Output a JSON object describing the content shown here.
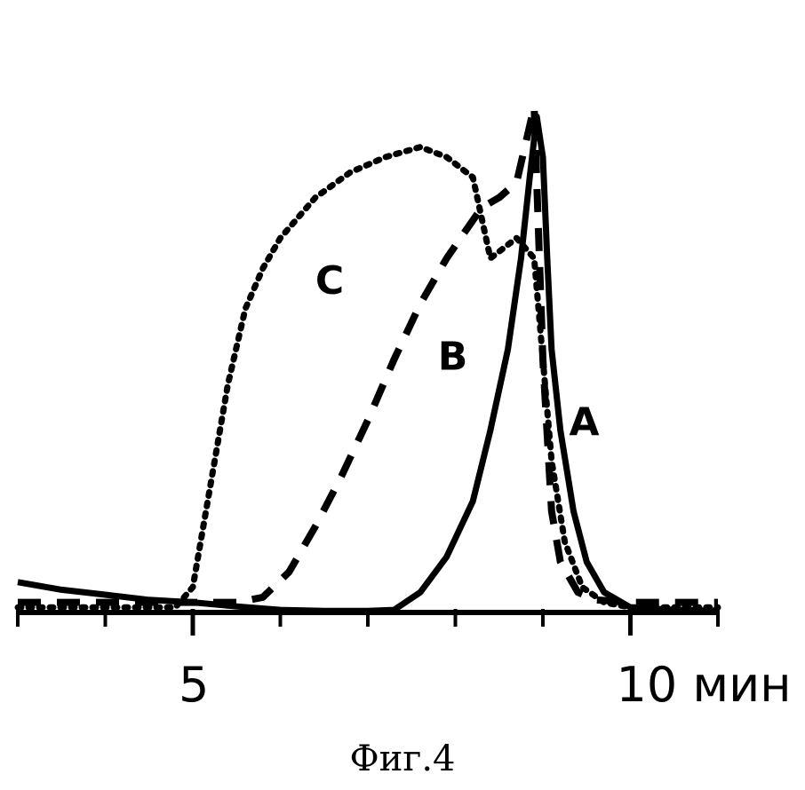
{
  "caption": "Фиг.4",
  "chart_data": {
    "type": "line",
    "xlabel": "",
    "ylabel": "",
    "xlim": [
      3,
      11
    ],
    "ylim": [
      0,
      1
    ],
    "x_ticks": [
      3,
      4,
      5,
      6,
      7,
      8,
      9,
      10,
      11
    ],
    "x_tick_labels": [
      {
        "x": 5,
        "label": "5"
      },
      {
        "x": 10,
        "label": "10 мин"
      }
    ],
    "grid": false,
    "legend": "none",
    "series": [
      {
        "name": "A",
        "style": "solid",
        "label_at": [
          9.3,
          0.35
        ],
        "points": [
          [
            3.0,
            0.06
          ],
          [
            3.5,
            0.045
          ],
          [
            4.0,
            0.035
          ],
          [
            4.5,
            0.025
          ],
          [
            5.0,
            0.02
          ],
          [
            5.5,
            0.012
          ],
          [
            6.0,
            0.005
          ],
          [
            6.5,
            0.003
          ],
          [
            7.0,
            0.003
          ],
          [
            7.3,
            0.005
          ],
          [
            7.6,
            0.04
          ],
          [
            7.9,
            0.11
          ],
          [
            8.2,
            0.22
          ],
          [
            8.4,
            0.36
          ],
          [
            8.6,
            0.52
          ],
          [
            8.75,
            0.7
          ],
          [
            8.85,
            0.86
          ],
          [
            8.93,
            0.98
          ],
          [
            9.0,
            0.9
          ],
          [
            9.05,
            0.7
          ],
          [
            9.1,
            0.52
          ],
          [
            9.2,
            0.36
          ],
          [
            9.35,
            0.2
          ],
          [
            9.5,
            0.1
          ],
          [
            9.7,
            0.04
          ],
          [
            10.0,
            0.01
          ],
          [
            10.5,
            0.005
          ],
          [
            11.0,
            0.003
          ]
        ]
      },
      {
        "name": "B",
        "style": "dashed",
        "label_at": [
          7.8,
          0.48
        ],
        "points": [
          [
            3.0,
            0.02
          ],
          [
            4.0,
            0.02
          ],
          [
            5.0,
            0.02
          ],
          [
            5.5,
            0.02
          ],
          [
            5.8,
            0.03
          ],
          [
            6.1,
            0.08
          ],
          [
            6.4,
            0.17
          ],
          [
            6.7,
            0.27
          ],
          [
            7.0,
            0.38
          ],
          [
            7.3,
            0.5
          ],
          [
            7.6,
            0.61
          ],
          [
            7.9,
            0.7
          ],
          [
            8.1,
            0.75
          ],
          [
            8.3,
            0.8
          ],
          [
            8.5,
            0.82
          ],
          [
            8.7,
            0.85
          ],
          [
            8.9,
            1.0
          ],
          [
            9.0,
            0.5
          ],
          [
            9.1,
            0.2
          ],
          [
            9.2,
            0.1
          ],
          [
            9.4,
            0.04
          ],
          [
            9.6,
            0.025
          ],
          [
            10.0,
            0.02
          ],
          [
            10.5,
            0.02
          ],
          [
            11.0,
            0.02
          ]
        ]
      },
      {
        "name": "C",
        "style": "dotted",
        "label_at": [
          6.4,
          0.63
        ],
        "points": [
          [
            3.0,
            0.01
          ],
          [
            4.0,
            0.01
          ],
          [
            4.8,
            0.01
          ],
          [
            5.0,
            0.05
          ],
          [
            5.2,
            0.25
          ],
          [
            5.4,
            0.45
          ],
          [
            5.6,
            0.6
          ],
          [
            5.8,
            0.68
          ],
          [
            6.0,
            0.74
          ],
          [
            6.4,
            0.82
          ],
          [
            6.8,
            0.87
          ],
          [
            7.2,
            0.9
          ],
          [
            7.6,
            0.92
          ],
          [
            7.9,
            0.9
          ],
          [
            8.2,
            0.86
          ],
          [
            8.4,
            0.7
          ],
          [
            8.55,
            0.72
          ],
          [
            8.7,
            0.74
          ],
          [
            8.9,
            0.7
          ],
          [
            9.0,
            0.5
          ],
          [
            9.1,
            0.3
          ],
          [
            9.25,
            0.14
          ],
          [
            9.45,
            0.05
          ],
          [
            9.7,
            0.02
          ],
          [
            10.0,
            0.01
          ],
          [
            11.0,
            0.01
          ]
        ]
      }
    ]
  }
}
